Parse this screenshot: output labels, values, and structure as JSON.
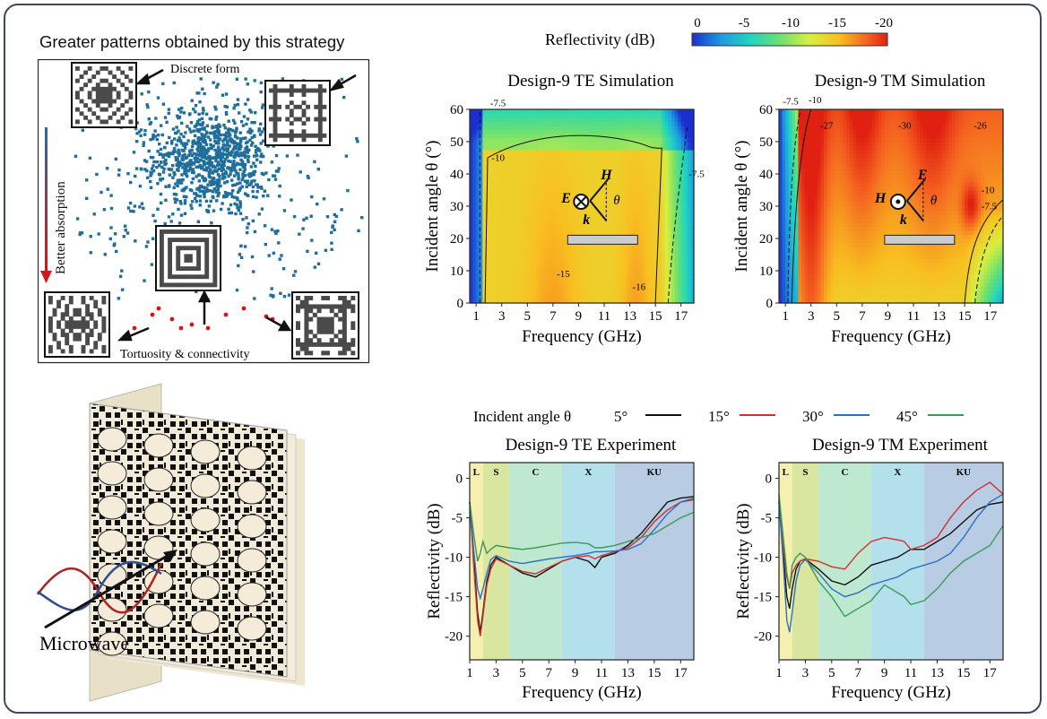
{
  "colors": {
    "frame": "#3a4a5c",
    "scatter_blue": "#1f6e9c",
    "scatter_red": "#d01818",
    "arrow_red": "#d01818",
    "arrow_blue": "#2a6b9a",
    "line_5": "#111111",
    "line_15": "#d03030",
    "line_30": "#2f6fc0",
    "line_45": "#3a9a55",
    "band_L": "#f6f0b0",
    "band_S": "#d9e6a0",
    "band_C": "#bfe8d0",
    "band_X": "#b4e0ec",
    "band_KU": "#b8cde4"
  },
  "scatter_panel": {
    "title": "Greater patterns obtained by this strategy",
    "label_discrete": "Discrete form",
    "label_tortuosity": "Tortuosity & connectivity",
    "label_absorption": "Better absorption",
    "icons": [
      "pattern-icon-discrete",
      "pattern-icon-upper-right",
      "pattern-icon-center",
      "pattern-icon-lower-left",
      "pattern-icon-lower-right"
    ]
  },
  "sample_panel": {
    "label": "Microwave",
    "icon": "absorber-stack-icon"
  },
  "colorbar": {
    "label": "Reflectivity (dB)",
    "ticks": [
      "0",
      "-5",
      "-10",
      "-15",
      "-20"
    ]
  },
  "legend": {
    "title": "Incident angle θ",
    "entries": [
      {
        "label": "5°"
      },
      {
        "label": "15°"
      },
      {
        "label": "30°"
      },
      {
        "label": "45°"
      }
    ]
  },
  "chart_data": [
    {
      "type": "heatmap",
      "title": "Design-9  TE Simulation",
      "xlabel": "Frequency (GHz)",
      "ylabel": "Incident angle θ (°)",
      "xlim": [
        0.5,
        18
      ],
      "ylim": [
        0,
        60
      ],
      "x_ticks": [
        "1",
        "3",
        "5",
        "7",
        "9",
        "11",
        "13",
        "15",
        "17"
      ],
      "y_ticks": [
        "0",
        "10",
        "20",
        "30",
        "40",
        "50",
        "60"
      ],
      "contour_labels": [
        "-7.5",
        "-10",
        "-7.5",
        "-15",
        "-16"
      ],
      "field_labels": [
        "E",
        "H",
        "θ",
        "k"
      ]
    },
    {
      "type": "heatmap",
      "title": "Design-9  TM Simulation",
      "xlabel": "Frequency (GHz)",
      "ylabel": "Incident angle θ (°)",
      "xlim": [
        0.5,
        18
      ],
      "ylim": [
        0,
        60
      ],
      "x_ticks": [
        "1",
        "3",
        "5",
        "7",
        "9",
        "11",
        "13",
        "15",
        "17"
      ],
      "y_ticks": [
        "0",
        "10",
        "20",
        "30",
        "40",
        "50",
        "60"
      ],
      "contour_labels": [
        "-7.5",
        "-10",
        "-27",
        "-30",
        "-26",
        "-10",
        "-7.5"
      ],
      "field_labels": [
        "H",
        "E",
        "θ",
        "k"
      ]
    },
    {
      "type": "line",
      "title": "Design-9  TE Experiment",
      "xlabel": "Frequency (GHz)",
      "ylabel": "Reflectivity (dB)",
      "xlim": [
        1,
        18
      ],
      "ylim": [
        -23,
        2
      ],
      "x_ticks": [
        "1",
        "3",
        "5",
        "7",
        "9",
        "11",
        "13",
        "15",
        "17"
      ],
      "y_ticks": [
        "0",
        "-5",
        "-10",
        "-15",
        "-20"
      ],
      "bands": [
        {
          "label": "L",
          "from": 1,
          "to": 2
        },
        {
          "label": "S",
          "from": 2,
          "to": 4
        },
        {
          "label": "C",
          "from": 4,
          "to": 8
        },
        {
          "label": "X",
          "from": 8,
          "to": 12
        },
        {
          "label": "KU",
          "from": 12,
          "to": 18
        }
      ],
      "x": [
        1,
        1.3,
        1.6,
        1.8,
        2,
        2.3,
        2.6,
        3,
        4,
        5,
        6,
        7,
        8,
        9,
        10,
        10.5,
        11,
        12,
        13,
        14,
        15,
        16,
        17,
        18
      ],
      "series": [
        {
          "name": "5°",
          "values": [
            -3,
            -10,
            -17,
            -19.5,
            -17,
            -13,
            -11,
            -10,
            -11,
            -12,
            -12.5,
            -11.5,
            -10.5,
            -10,
            -10.5,
            -11.3,
            -10,
            -9.5,
            -8.5,
            -7,
            -5,
            -3,
            -2.5,
            -2.3
          ]
        },
        {
          "name": "15°",
          "values": [
            -3,
            -11,
            -18,
            -20,
            -17.5,
            -13.5,
            -11.5,
            -10.2,
            -11,
            -11.8,
            -12.1,
            -11.3,
            -10.5,
            -10,
            -9.8,
            -10.2,
            -9.8,
            -9.3,
            -8.8,
            -7.5,
            -5.5,
            -4,
            -3,
            -2.7
          ]
        },
        {
          "name": "30°",
          "values": [
            -3,
            -9,
            -14,
            -15.2,
            -14,
            -12,
            -10.3,
            -9.8,
            -10.5,
            -10.8,
            -10.5,
            -10.2,
            -10,
            -9.8,
            -9.5,
            -9.3,
            -9.3,
            -9.2,
            -9,
            -8.3,
            -6.5,
            -4.5,
            -3,
            -2.5
          ]
        },
        {
          "name": "45°",
          "values": [
            -3,
            -7,
            -10.5,
            -9.5,
            -8,
            -9.5,
            -9,
            -8.5,
            -8.8,
            -9,
            -8.8,
            -8.5,
            -8.2,
            -8.1,
            -8.3,
            -8.8,
            -8.8,
            -8.5,
            -8,
            -7.5,
            -7,
            -6,
            -5,
            -4.3
          ]
        }
      ]
    },
    {
      "type": "line",
      "title": "Design-9  TM Experiment",
      "xlabel": "Frequency (GHz)",
      "ylabel": "Reflectivity (dB)",
      "xlim": [
        1,
        18
      ],
      "ylim": [
        -23,
        2
      ],
      "x_ticks": [
        "1",
        "3",
        "5",
        "7",
        "9",
        "11",
        "13",
        "15",
        "17"
      ],
      "y_ticks": [
        "0",
        "-5",
        "-10",
        "-15",
        "-20"
      ],
      "bands": [
        {
          "label": "L",
          "from": 1,
          "to": 2
        },
        {
          "label": "S",
          "from": 2,
          "to": 4
        },
        {
          "label": "C",
          "from": 4,
          "to": 8
        },
        {
          "label": "X",
          "from": 8,
          "to": 12
        },
        {
          "label": "KU",
          "from": 12,
          "to": 18
        }
      ],
      "x": [
        1,
        1.3,
        1.6,
        1.8,
        2,
        2.3,
        2.6,
        3,
        4,
        5,
        6,
        7,
        8,
        9,
        10,
        10.5,
        11,
        12,
        13,
        14,
        15,
        16,
        17,
        18
      ],
      "series": [
        {
          "name": "5°",
          "values": [
            -3,
            -9,
            -15,
            -16.5,
            -14,
            -11.5,
            -10.5,
            -10.2,
            -11.5,
            -13,
            -13.5,
            -12.5,
            -11,
            -10.5,
            -10,
            -9.5,
            -9,
            -9,
            -8,
            -7,
            -5.5,
            -4,
            -3.3,
            -3
          ]
        },
        {
          "name": "15°",
          "values": [
            -3,
            -8,
            -12.5,
            -14,
            -12,
            -11,
            -10.5,
            -10.2,
            -10.5,
            -11.2,
            -11.5,
            -9.5,
            -8,
            -7.5,
            -7.8,
            -8,
            -9,
            -8.5,
            -7.5,
            -5,
            -3,
            -1.5,
            -0.5,
            -2
          ]
        },
        {
          "name": "30°",
          "values": [
            -3,
            -10,
            -18,
            -19.5,
            -17,
            -13,
            -11,
            -10.3,
            -12,
            -14,
            -15,
            -14.5,
            -13.5,
            -13,
            -12.5,
            -12,
            -11.5,
            -11,
            -10.5,
            -9.5,
            -7.5,
            -5,
            -3,
            -2
          ]
        },
        {
          "name": "45°",
          "values": [
            -2,
            -7,
            -12,
            -14,
            -11,
            -10,
            -9.5,
            -10,
            -13,
            -15,
            -17.5,
            -16.5,
            -15.5,
            -13.5,
            -14.5,
            -15,
            -16,
            -15.5,
            -14,
            -12,
            -10.5,
            -9.5,
            -8.5,
            -6
          ]
        }
      ]
    }
  ]
}
